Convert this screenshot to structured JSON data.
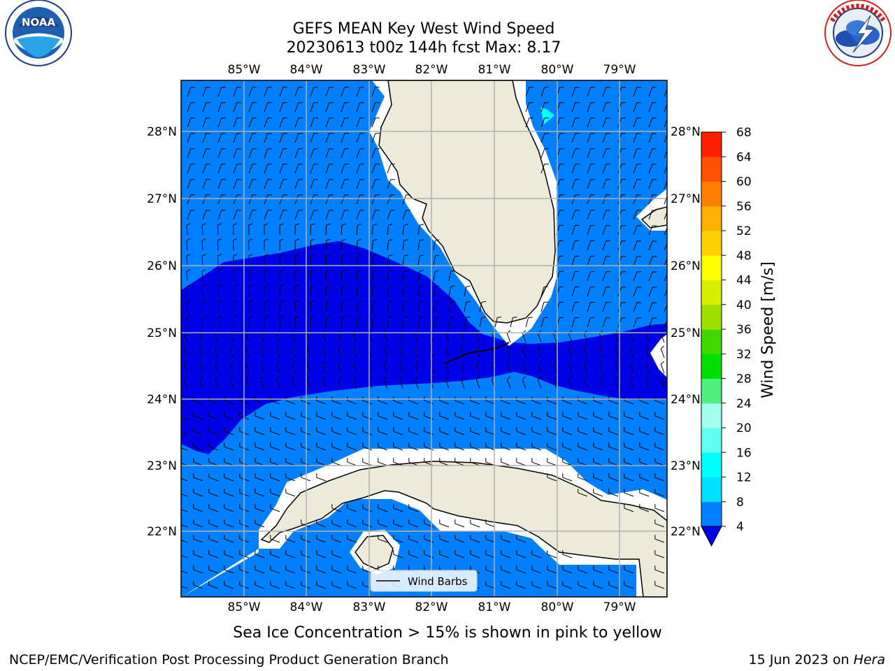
{
  "title": {
    "line1": "GEFS MEAN Key West Wind Speed",
    "line2": "20230613 t00z 144h fcst   Max: 8.17"
  },
  "logos": {
    "left": {
      "text": "NOAA",
      "icon": "noaa-logo"
    },
    "right": {
      "icon": "national-weather-service-logo"
    }
  },
  "map": {
    "lon_labels": [
      "85°W",
      "84°W",
      "83°W",
      "82°W",
      "81°W",
      "80°W",
      "79°W"
    ],
    "lat_labels": [
      "28°N",
      "27°N",
      "26°N",
      "25°N",
      "24°N",
      "23°N",
      "22°N"
    ],
    "colors": {
      "band_4_8": "#0080ff",
      "band_below_4": "#0000e6",
      "band_8_12": "#00ffff",
      "land": "#ecead9",
      "coast_gap": "#ffffff",
      "grid": "#b0b0b0"
    },
    "legend_label": "Wind Barbs"
  },
  "colorbar": {
    "label": "Wind Speed [m/s]",
    "ticks": [
      "4",
      "8",
      "12",
      "16",
      "20",
      "24",
      "28",
      "32",
      "36",
      "40",
      "44",
      "48",
      "52",
      "56",
      "60",
      "64",
      "68"
    ],
    "colors": [
      "#0000e6",
      "#0080ff",
      "#00e0ff",
      "#00ffff",
      "#60fff0",
      "#a0fff0",
      "#50f080",
      "#00e000",
      "#40d800",
      "#a0e000",
      "#d8f000",
      "#ffff00",
      "#ffd000",
      "#ffb000",
      "#ff8000",
      "#ff5000",
      "#ff2000",
      "#ff0000"
    ]
  },
  "note": "Sea Ice Concentration > 15% is shown in pink to yellow",
  "footer": {
    "left": "NCEP/EMC/Verification Post Processing Product Generation Branch",
    "date": "15 Jun 2023 on ",
    "host": "Hera"
  }
}
